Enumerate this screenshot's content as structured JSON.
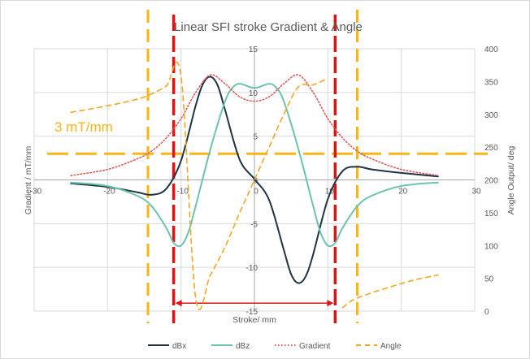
{
  "chart_data": {
    "type": "line",
    "title": "Linear SFI stroke Gradient & Angle",
    "xlabel": "Stroke/ mm",
    "ylabel": "Gradient / mT/mm",
    "y2label": "Angle Output/ deg",
    "xlim": [
      -30,
      30
    ],
    "ylim": [
      -15,
      15
    ],
    "y2lim": [
      0,
      400
    ],
    "xticks": [
      -30,
      -20,
      -10,
      0,
      10,
      20,
      30
    ],
    "yticks": [
      -15,
      -10,
      -5,
      0,
      5,
      10,
      15
    ],
    "y2ticks": [
      0,
      50,
      100,
      150,
      200,
      250,
      300,
      350,
      400
    ],
    "grid": true,
    "legend_position": "bottom",
    "annotation": "3 mT/mm",
    "series": [
      {
        "name": "dBx",
        "axis": "left",
        "color": "#1f3344",
        "style": "solid",
        "x": [
          -25,
          -20,
          -16,
          -14,
          -12,
          -10,
          -8,
          -7,
          -6,
          -5,
          -4,
          -2,
          0,
          2,
          4,
          5,
          6,
          7,
          8,
          10,
          12,
          14,
          16,
          20,
          25
        ],
        "y": [
          -0.4,
          -0.8,
          -1.4,
          -1.7,
          -1.0,
          2.2,
          8.5,
          11.0,
          11.8,
          10.8,
          8.0,
          2.3,
          0.1,
          -2.3,
          -8.0,
          -10.8,
          -11.8,
          -11.0,
          -8.5,
          -2.2,
          1.0,
          1.5,
          1.2,
          0.8,
          0.4
        ]
      },
      {
        "name": "dBz",
        "axis": "left",
        "color": "#6cc4ae",
        "style": "solid",
        "x": [
          -25,
          -20,
          -16,
          -14,
          -12,
          -11,
          -10,
          -9,
          -8,
          -6,
          -4,
          -3,
          -2,
          0,
          2,
          3,
          4,
          6,
          8,
          9,
          10,
          11,
          12,
          14,
          16,
          20,
          25
        ],
        "y": [
          -0.3,
          -0.7,
          -1.8,
          -3.0,
          -5.5,
          -7.2,
          -7.5,
          -6.0,
          -3.0,
          3.5,
          9.0,
          10.5,
          11.0,
          10.5,
          11.0,
          10.5,
          9.0,
          3.5,
          -3.0,
          -6.0,
          -7.5,
          -7.2,
          -5.5,
          -3.0,
          -1.8,
          -0.7,
          -0.3
        ]
      },
      {
        "name": "Gradient",
        "axis": "left",
        "color": "#e05a5a",
        "style": "dotted",
        "x": [
          -25,
          -20,
          -16,
          -14,
          -12,
          -10,
          -8,
          -6,
          -4,
          -2,
          0,
          2,
          4,
          6,
          8,
          10,
          12,
          14,
          16,
          20,
          25
        ],
        "y": [
          0.5,
          1.2,
          2.4,
          3.3,
          4.8,
          7.0,
          10.0,
          12.0,
          11.0,
          9.5,
          9.0,
          9.5,
          11.0,
          12.0,
          10.0,
          7.0,
          4.8,
          3.3,
          2.4,
          1.2,
          0.5
        ]
      },
      {
        "name": "Angle",
        "axis": "right",
        "color": "#f5a623",
        "style": "dashed",
        "segments": [
          {
            "x": [
              -25,
              -20,
              -16,
              -14,
              -12,
              -10,
              -8,
              -6,
              -4,
              -2,
              0,
              2,
              4,
              6,
              8,
              10
            ],
            "y": [
              303,
              313,
              323,
              331,
              343,
              358,
              20,
              55,
              98,
              150,
              200,
              250,
              300,
              342,
              345,
              355
            ]
          },
          {
            "x": [
              12,
              13,
              14,
              16,
              18,
              20,
              22,
              25
            ],
            "y": [
              5,
              14,
              20,
              28,
              35,
              42,
              48,
              55
            ]
          }
        ]
      }
    ]
  },
  "overlays": {
    "threshold_gradient": 3,
    "threshold_color": "#fbb514",
    "red_bounds_x": [
      -11,
      11
    ],
    "red_color": "#e31212",
    "orange_bounds_x": [
      -14.5,
      14
    ]
  },
  "legend": [
    {
      "label": "dBx",
      "color": "#1f3344",
      "style": "solid"
    },
    {
      "label": "dBz",
      "color": "#6cc4ae",
      "style": "solid"
    },
    {
      "label": "Gradient",
      "color": "#e05a5a",
      "style": "dotted"
    },
    {
      "label": "Angle",
      "color": "#f5a623",
      "style": "dashed"
    }
  ]
}
